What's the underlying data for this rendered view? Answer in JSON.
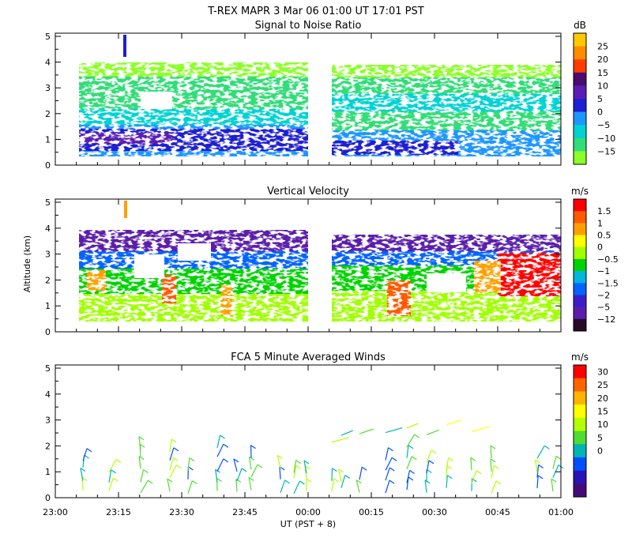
{
  "figure": {
    "title": "T-REX   MAPR   3 Mar 06   01:00 UT   17:01   PST",
    "y_axis_label": "Altitude (km)",
    "x_axis_label": "UT  (PST + 8)",
    "x_ticks": [
      "23:00",
      "23:15",
      "23:30",
      "23:45",
      "00:00",
      "00:15",
      "00:30",
      "00:45",
      "01:00"
    ]
  },
  "chart_data": [
    {
      "type": "heatmap",
      "title": "Signal to Noise Ratio",
      "ylim": [
        0,
        5
      ],
      "y_ticks": [
        "0",
        "1",
        "2",
        "3",
        "4",
        "5"
      ],
      "colorbar": {
        "unit": "dB",
        "labels": [
          "25",
          "20",
          "15",
          "10",
          "5",
          "0",
          "−5",
          "−10",
          "−15"
        ],
        "colors": [
          "#ffc800",
          "#ff8c00",
          "#ff3c00",
          "#4b0a6e",
          "#5a1eb4",
          "#1e1ed2",
          "#1e96ff",
          "#00d2d2",
          "#32dc78",
          "#8cff28"
        ]
      }
    },
    {
      "type": "heatmap",
      "title": "Vertical Velocity",
      "ylim": [
        0,
        5
      ],
      "y_ticks": [
        "0",
        "1",
        "2",
        "3",
        "4",
        "5"
      ],
      "colorbar": {
        "unit": "m/s",
        "labels": [
          "1.5",
          "1",
          "0.5",
          "0",
          "−0.5",
          "−1",
          "−1.5",
          "−2",
          "−5",
          "−12"
        ],
        "colors": [
          "#ff0000",
          "#ff5a00",
          "#ffa000",
          "#ffff00",
          "#a0ff00",
          "#00d200",
          "#00b4dc",
          "#0064ff",
          "#3c1ec8",
          "#5a1eaa",
          "#280a28"
        ]
      }
    },
    {
      "type": "scatter",
      "title": "FCA 5 Minute Averaged Winds",
      "ylim": [
        0,
        5
      ],
      "y_ticks": [
        "0",
        "1",
        "2",
        "3",
        "4",
        "5"
      ],
      "colorbar": {
        "unit": "m/s",
        "labels": [
          "30",
          "25",
          "20",
          "15",
          "10",
          "5",
          "0"
        ],
        "colors": [
          "#ff0000",
          "#ff6400",
          "#ffb400",
          "#ffff00",
          "#b4ff00",
          "#50dc32",
          "#00b4b4",
          "#0050ff",
          "#2814b4",
          "#460a78"
        ]
      }
    }
  ]
}
